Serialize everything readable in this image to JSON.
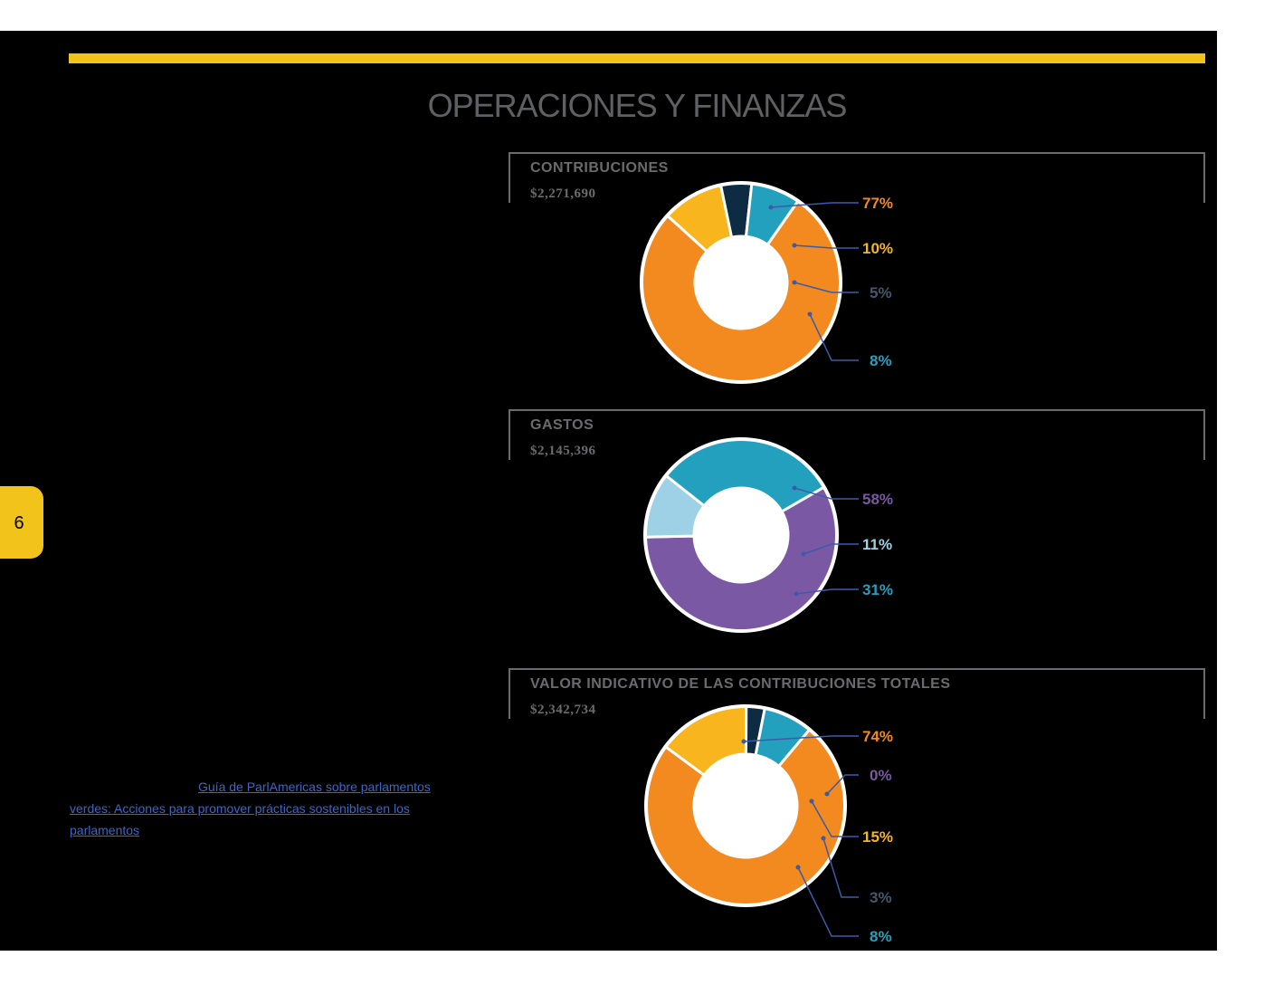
{
  "page": {
    "title": "OPERACIONES Y FINANZAS",
    "page_number": "6",
    "accent_color": "#f1c31b",
    "link_text": "Guía de ParlAmericas sobre parlamentos verdes: Acciones para promover prácticas sostenibles en los parlamentos"
  },
  "panels": [
    {
      "title": "CONTRIBUCIONES",
      "total": "$2,271,690"
    },
    {
      "title": "GASTOS",
      "total": "$2,145,396"
    },
    {
      "title": "VALOR INDICATIVO DE LAS CONTRIBUCIONES TOTALES",
      "total": "$2,342,734"
    }
  ],
  "chart_data": [
    {
      "type": "pie",
      "title": "CONTRIBUCIONES",
      "subtitle": "$2,271,690",
      "slices": [
        {
          "label": "77%",
          "value": 77,
          "color": "#f28a1f"
        },
        {
          "label": "10%",
          "value": 10,
          "color": "#f8b51e"
        },
        {
          "label": "5%",
          "value": 5,
          "color": "#0d2c44"
        },
        {
          "label": "8%",
          "value": 8,
          "color": "#24a0bf"
        }
      ],
      "label_colors": [
        "#f28a1f",
        "#f8b51e",
        "#44586b",
        "#24a0bf"
      ]
    },
    {
      "type": "pie",
      "title": "GASTOS",
      "subtitle": "$2,145,396",
      "slices": [
        {
          "label": "58%",
          "value": 58,
          "color": "#7a58a4"
        },
        {
          "label": "11%",
          "value": 11,
          "color": "#9ed0e6"
        },
        {
          "label": "31%",
          "value": 31,
          "color": "#24a0bf"
        }
      ],
      "label_colors": [
        "#7a58a4",
        "#9ed0e6",
        "#24a0bf"
      ]
    },
    {
      "type": "pie",
      "title": "VALOR INDICATIVO DE LAS CONTRIBUCIONES TOTALES",
      "subtitle": "$2,342,734",
      "slices": [
        {
          "label": "74%",
          "value": 74,
          "color": "#f28a1f"
        },
        {
          "label": "0%",
          "value": 0,
          "color": "#7a58a4"
        },
        {
          "label": "15%",
          "value": 15,
          "color": "#f8b51e"
        },
        {
          "label": "3%",
          "value": 3,
          "color": "#0d2c44"
        },
        {
          "label": "8%",
          "value": 8,
          "color": "#24a0bf"
        }
      ],
      "label_colors": [
        "#f28a1f",
        "#7a58a4",
        "#f8b51e",
        "#44586b",
        "#24a0bf"
      ]
    }
  ]
}
